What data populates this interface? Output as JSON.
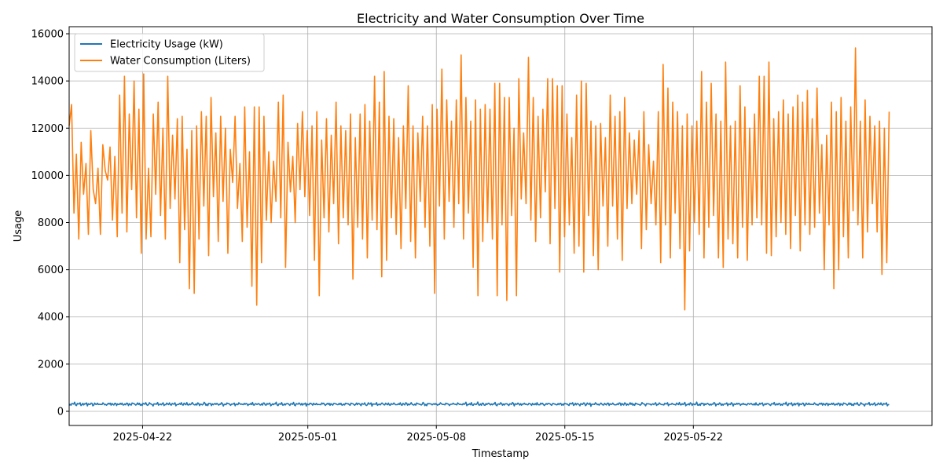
{
  "chart_data": {
    "type": "line",
    "title": "Electricity and Water Consumption Over Time",
    "xlabel": "Timestamp",
    "ylabel": "Usage",
    "x_range": [
      "2025-04-18",
      "2025-06-04"
    ],
    "ylim": [
      -600,
      16300
    ],
    "y_ticks": [
      0,
      2000,
      4000,
      6000,
      8000,
      10000,
      12000,
      14000,
      16000
    ],
    "x_ticks": [
      "2025-04-22",
      "2025-05-01",
      "2025-05-08",
      "2025-05-15",
      "2025-05-22"
    ],
    "grid": true,
    "legend_position": "top-left",
    "x_start": "2025-04-18T00:00",
    "x_step_hours": 1,
    "series": [
      {
        "name": "Electricity Usage (kW)",
        "color": "#1f77b4",
        "mean": 300,
        "values": [
          290,
          320,
          270,
          330,
          310,
          280,
          350,
          300,
          260,
          340,
          310,
          290,
          330,
          280,
          300,
          350,
          270,
          310,
          290,
          320,
          260,
          340,
          300,
          280,
          330,
          310,
          270,
          290,
          360,
          300,
          280,
          320,
          250,
          330,
          310,
          300,
          280,
          340,
          290,
          310,
          320,
          270,
          300,
          330,
          280,
          310,
          290,
          350,
          300,
          260,
          320,
          310,
          280,
          340,
          300,
          290,
          330,
          270,
          310,
          300
        ]
      },
      {
        "name": "Water Consumption (Liters)",
        "color": "#ff7f0e",
        "values": [
          12100,
          13000,
          8400,
          10900,
          7300,
          11400,
          9200,
          10500,
          7500,
          11900,
          9400,
          8800,
          10300,
          7500,
          11300,
          10200,
          9800,
          11200,
          8100,
          10800,
          7400,
          13400,
          8400,
          14200,
          7600,
          12600,
          9400,
          14000,
          8200,
          12800,
          6700,
          14300,
          7300,
          10300,
          7400,
          12600,
          9200,
          13100,
          8300,
          12000,
          7300,
          14200,
          8600,
          11700,
          9000,
          12400,
          6300,
          12500,
          7700,
          11100,
          5200,
          11900,
          5000,
          12100,
          7300,
          12700,
          8700,
          12500,
          6600,
          13300,
          9100,
          11800,
          7200,
          12500,
          8900,
          12000,
          6700,
          11100,
          9700,
          12500,
          8600,
          10500,
          7200,
          12900,
          7800,
          11000,
          5300,
          12900,
          4500,
          12900,
          6300,
          12500,
          8100,
          11000,
          8000,
          10600,
          8900,
          13100,
          8200,
          13400,
          6100,
          11400,
          9300,
          10800,
          8000,
          12200,
          9400,
          12700,
          9100,
          11900,
          8300,
          12100,
          6400,
          12700,
          4900,
          11500,
          8200,
          12400,
          7600,
          11700,
          8800,
          13100,
          7100,
          12100,
          8200,
          11900,
          7900,
          12600,
          5600,
          11600,
          7800,
          12600,
          7300,
          13000,
          6500,
          12300,
          8100,
          14200,
          7700,
          13100,
          5700,
          14400,
          6400,
          12500,
          8200,
          12400,
          7500,
          11600,
          6900,
          12100,
          8600,
          13800,
          7200,
          12100,
          6500,
          11800,
          8900,
          12500,
          7800,
          12100,
          7000,
          13000,
          5000,
          12800,
          8700,
          14500,
          7300,
          13200,
          8900,
          12300,
          7800,
          13200,
          8800,
          15100,
          7300,
          13300,
          8400,
          12300,
          6100,
          13200,
          4900,
          12800,
          7200,
          13000,
          8000,
          12800,
          7300,
          13900,
          4900,
          13900,
          7900,
          13300,
          4700,
          13300,
          8300,
          12000,
          4900,
          14100,
          9000,
          11800,
          8800,
          15000,
          8100,
          13300,
          7200,
          12500,
          8200,
          12800,
          9300,
          14100,
          7100,
          14100,
          8600,
          13800,
          5900,
          13800,
          7400,
          12600,
          7900,
          11600,
          6700,
          13400,
          7000,
          14000,
          5900,
          13900,
          8300,
          12300,
          6600,
          12100,
          6000,
          12200,
          8700,
          11600,
          7000,
          13400,
          8700,
          12500,
          7300,
          12700,
          6400,
          13300,
          8600,
          11800,
          8800,
          11500,
          9200,
          11900,
          6900,
          12700,
          7700,
          11300,
          8800,
          10600,
          7900,
          12700,
          6300,
          14700,
          7900,
          13700,
          6500,
          13100,
          8400,
          12700,
          6900,
          12100,
          4300,
          12600,
          6800,
          12100,
          8000,
          12300,
          7500,
          14400,
          6500,
          13100,
          7800,
          13900,
          8300,
          12600,
          6500,
          12300,
          6100,
          14800,
          7300,
          12100,
          7100,
          12300,
          6500,
          13800,
          7800,
          12900,
          6400,
          12000,
          7900,
          12600,
          8200,
          14200,
          7900,
          14200,
          6700,
          14800,
          6600,
          12400,
          7400,
          12700,
          8000,
          13200,
          7500,
          12600,
          6900,
          12900,
          8300,
          13400,
          6800,
          13100,
          7900,
          13600,
          7500,
          12400,
          7800,
          13700,
          8400,
          11300,
          6000,
          11700,
          7900,
          13100,
          5200,
          12700,
          6000,
          13300,
          7400,
          12300,
          6500,
          12900,
          8500,
          15400,
          7900,
          12300,
          6500,
          13200,
          7600,
          12500,
          8800,
          12100,
          7600,
          12300,
          5800,
          12000,
          6300,
          12700
        ]
      }
    ]
  }
}
